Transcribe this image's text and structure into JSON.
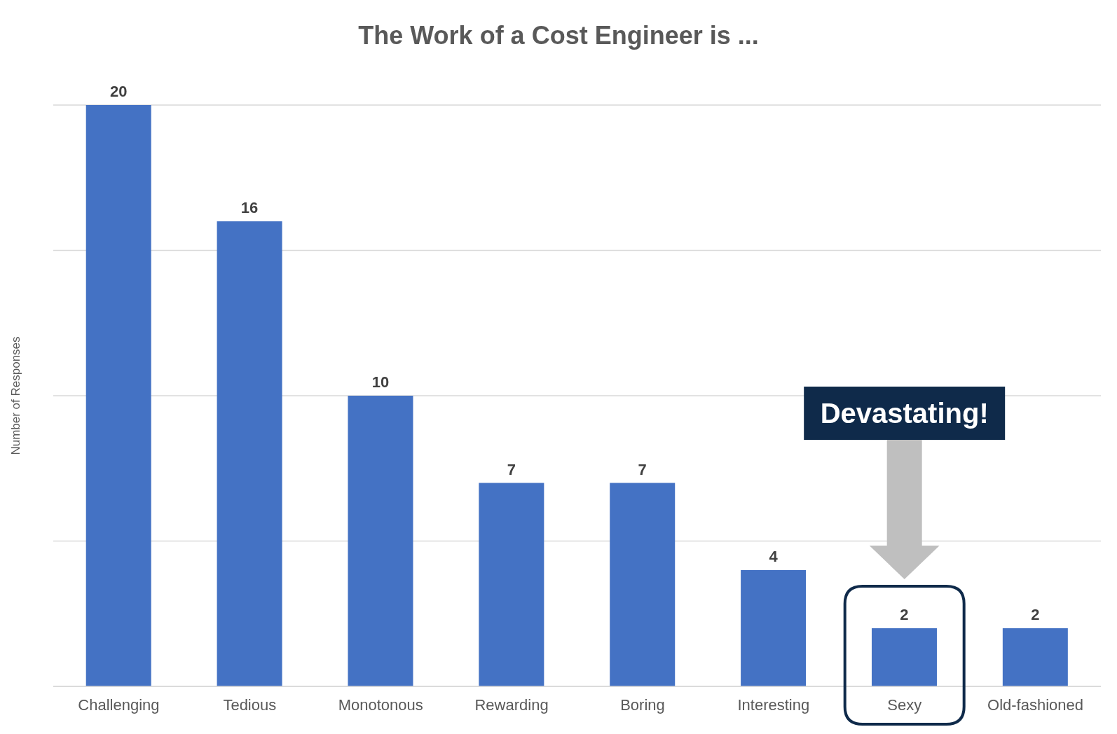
{
  "chart_data": {
    "type": "bar",
    "title": "The Work of a Cost Engineer is ...",
    "ylabel": "Number of Responses",
    "categories": [
      "Challenging",
      "Tedious",
      "Monotonous",
      "Rewarding",
      "Boring",
      "Interesting",
      "Sexy",
      "Old-fashioned"
    ],
    "values": [
      20,
      16,
      10,
      7,
      7,
      4,
      2,
      2
    ],
    "color": "#4472c4",
    "data_labels": true,
    "ylim": [
      0,
      20
    ],
    "yticks": [
      {
        "value": 0,
        "label": null
      },
      {
        "value": 5,
        "label": null
      },
      {
        "value": 10,
        "label": null
      },
      {
        "value": 15,
        "label": null
      },
      {
        "value": 20,
        "label": null
      }
    ],
    "grid": "y",
    "tick_labels": "x",
    "annotations": [
      "Devastating!"
    ]
  }
}
